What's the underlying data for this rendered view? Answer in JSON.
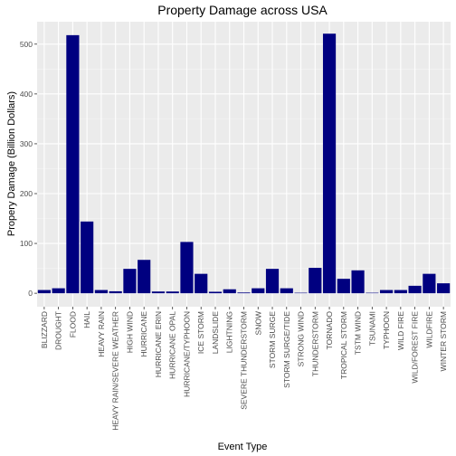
{
  "chart_data": {
    "type": "bar",
    "title": "Property Damage across USA",
    "xlabel": "Event Type",
    "ylabel": "Propery Damage (Billion Dollars)",
    "ylim": [
      -27,
      545
    ],
    "yticks": [
      0,
      100,
      200,
      300,
      400,
      500
    ],
    "grid": true,
    "bar_color": "#000080",
    "panel_color": "#ebebeb",
    "categories": [
      "BLIZZARD",
      "DROUGHT",
      "FLOOD",
      "HAIL",
      "HEAVY RAIN",
      "HEAVY RAIN/SEVERE WEATHER",
      "HIGH WIND",
      "HURRICANE",
      "HURRICANE ERIN",
      "HURRICANE OPAL",
      "HURRICANE/TYPHOON",
      "ICE STORM",
      "LANDSLIDE",
      "LIGHTNING",
      "SEVERE THUNDERSTORM",
      "SNOW",
      "STORM SURGE",
      "STORM SURGE/TIDE",
      "STRONG WIND",
      "THUNDERSTORM",
      "TORNADO",
      "TROPICAL STORM",
      "TSTM WIND",
      "TSUNAMI",
      "TYPHOON",
      "WILD FIRE",
      "WILD/FOREST FIRE",
      "WILDFIRE",
      "WINTER STORM"
    ],
    "values": [
      6.5,
      10,
      518,
      144,
      6.5,
      4,
      49,
      67,
      3.5,
      3.5,
      103,
      39,
      3,
      8,
      1.5,
      10,
      49,
      10,
      1,
      51,
      521,
      29,
      46,
      1,
      6.5,
      6.5,
      15,
      39,
      20
    ]
  }
}
